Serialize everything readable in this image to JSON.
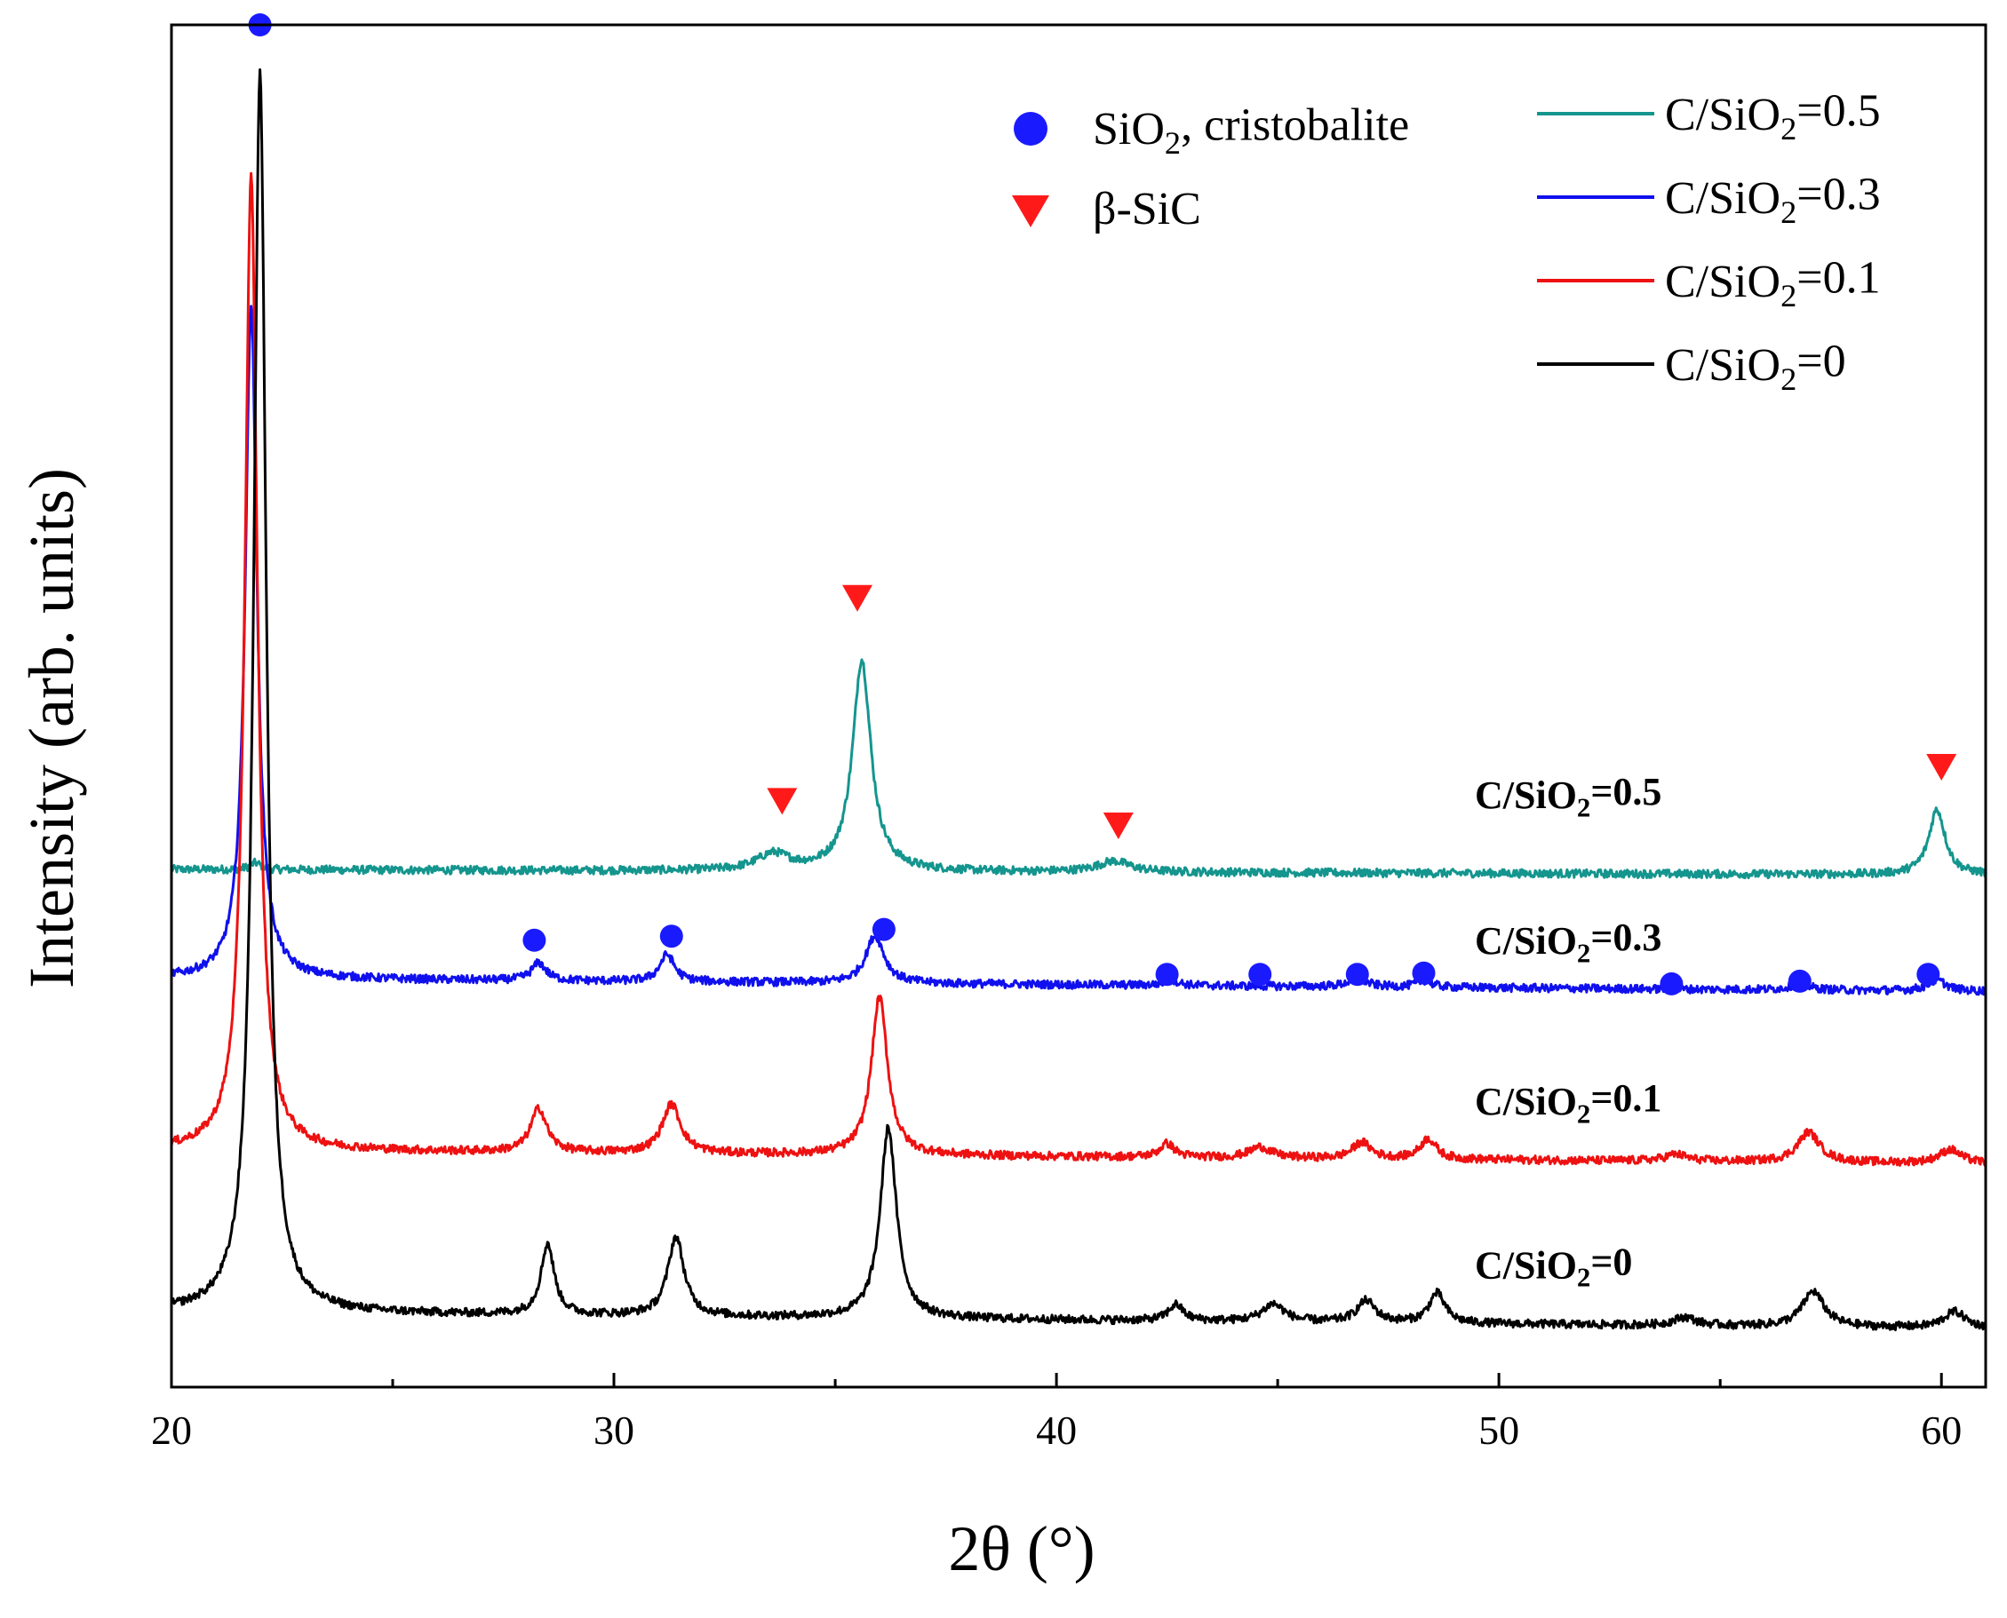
{
  "chart_data": {
    "type": "line",
    "title": "",
    "xlabel": "2θ (°)",
    "ylabel": "Intensity (arb. units)",
    "xlim": [
      20,
      61
    ],
    "ylim": [
      0,
      1
    ],
    "xticks": [
      20,
      30,
      40,
      50,
      60
    ],
    "yticks": [],
    "grid": false,
    "legend_position": "top-right",
    "colors": {
      "c05": "#14958e",
      "c03": "#1010ee",
      "c01": "#ee1111",
      "c0": "#000000",
      "cristobalite_marker": "#1a1aff",
      "sic_marker": "#ff1a1a"
    },
    "series": [
      {
        "key": "c05",
        "name": "C/SiO2=0.5",
        "label_main": "C/SiO",
        "label_sub": "2",
        "label_tail": "=0.5",
        "color": "#14958e",
        "baseline": 0.38,
        "slope": -0.004,
        "peaks": [
          {
            "x": 21.9,
            "height": 0.005,
            "width": 0.15
          },
          {
            "x": 33.6,
            "height": 0.012,
            "width": 0.45
          },
          {
            "x": 35.6,
            "height": 0.155,
            "width": 0.25
          },
          {
            "x": 41.3,
            "height": 0.008,
            "width": 0.45
          },
          {
            "x": 59.9,
            "height": 0.048,
            "width": 0.22
          }
        ]
      },
      {
        "key": "c03",
        "name": "C/SiO2=0.3",
        "label_main": "C/SiO",
        "label_sub": "2",
        "label_tail": "=0.3",
        "color": "#1010ee",
        "baseline": 0.3,
        "slope": -0.0095,
        "peaks": [
          {
            "x": 21.8,
            "height": 0.495,
            "width": 0.16
          },
          {
            "x": 28.3,
            "height": 0.013,
            "width": 0.2
          },
          {
            "x": 31.2,
            "height": 0.02,
            "width": 0.2
          },
          {
            "x": 35.9,
            "height": 0.035,
            "width": 0.25
          },
          {
            "x": 42.6,
            "height": 0.004,
            "width": 0.2
          },
          {
            "x": 46.8,
            "height": 0.006,
            "width": 0.25
          },
          {
            "x": 48.3,
            "height": 0.005,
            "width": 0.2
          },
          {
            "x": 56.8,
            "height": 0.005,
            "width": 0.25
          },
          {
            "x": 59.9,
            "height": 0.008,
            "width": 0.25
          }
        ]
      },
      {
        "key": "c01",
        "name": "C/SiO2=0.1",
        "label_main": "C/SiO",
        "label_sub": "2",
        "label_tail": "=0.1",
        "color": "#ee1111",
        "baseline": 0.174,
        "slope": -0.01,
        "peaks": [
          {
            "x": 21.8,
            "height": 0.715,
            "width": 0.17
          },
          {
            "x": 28.3,
            "height": 0.032,
            "width": 0.22
          },
          {
            "x": 31.3,
            "height": 0.036,
            "width": 0.25
          },
          {
            "x": 36.0,
            "height": 0.116,
            "width": 0.22
          },
          {
            "x": 42.5,
            "height": 0.01,
            "width": 0.2
          },
          {
            "x": 44.6,
            "height": 0.008,
            "width": 0.3
          },
          {
            "x": 46.9,
            "height": 0.012,
            "width": 0.25
          },
          {
            "x": 48.4,
            "height": 0.015,
            "width": 0.22
          },
          {
            "x": 54.0,
            "height": 0.005,
            "width": 0.3
          },
          {
            "x": 57.0,
            "height": 0.022,
            "width": 0.3
          },
          {
            "x": 60.2,
            "height": 0.01,
            "width": 0.3
          }
        ]
      },
      {
        "key": "c0",
        "name": "C/SiO2=0",
        "label_main": "C/SiO",
        "label_sub": "2",
        "label_tail": "=0",
        "color": "#000000",
        "baseline": 0.055,
        "slope": -0.012,
        "peaks": [
          {
            "x": 22.0,
            "height": 0.91,
            "width": 0.17
          },
          {
            "x": 28.5,
            "height": 0.052,
            "width": 0.18
          },
          {
            "x": 31.4,
            "height": 0.058,
            "width": 0.22
          },
          {
            "x": 36.2,
            "height": 0.14,
            "width": 0.22
          },
          {
            "x": 42.7,
            "height": 0.012,
            "width": 0.2
          },
          {
            "x": 44.9,
            "height": 0.013,
            "width": 0.3
          },
          {
            "x": 47.0,
            "height": 0.016,
            "width": 0.25
          },
          {
            "x": 48.6,
            "height": 0.022,
            "width": 0.22
          },
          {
            "x": 54.2,
            "height": 0.006,
            "width": 0.3
          },
          {
            "x": 57.1,
            "height": 0.026,
            "width": 0.3
          },
          {
            "x": 60.3,
            "height": 0.012,
            "width": 0.3
          }
        ]
      }
    ],
    "annotations": {
      "cristobalite_markers": [
        {
          "x": 22.0,
          "y": 1.0
        },
        {
          "x": 28.2,
          "y": 0.328
        },
        {
          "x": 31.3,
          "y": 0.331
        },
        {
          "x": 36.1,
          "y": 0.336
        },
        {
          "x": 42.5,
          "y": 0.303
        },
        {
          "x": 44.6,
          "y": 0.303
        },
        {
          "x": 46.8,
          "y": 0.303
        },
        {
          "x": 48.3,
          "y": 0.304
        },
        {
          "x": 53.9,
          "y": 0.296
        },
        {
          "x": 56.8,
          "y": 0.298
        },
        {
          "x": 59.7,
          "y": 0.303
        }
      ],
      "sic_markers": [
        {
          "x": 33.8,
          "y": 0.43
        },
        {
          "x": 35.5,
          "y": 0.579
        },
        {
          "x": 41.4,
          "y": 0.412
        },
        {
          "x": 60.0,
          "y": 0.455
        }
      ]
    },
    "legend": {
      "markers": [
        {
          "key": "cristobalite",
          "symbol": "circle",
          "text_main": "SiO",
          "text_sub": "2",
          "text_tail": ", cristobalite"
        },
        {
          "key": "sic",
          "symbol": "triangle-down",
          "text_main": "β-SiC",
          "text_sub": "",
          "text_tail": ""
        }
      ],
      "lines": [
        {
          "key": "c05",
          "main": "C/SiO",
          "sub": "2",
          "tail": "=0.5"
        },
        {
          "key": "c03",
          "main": "C/SiO",
          "sub": "2",
          "tail": "=0.3"
        },
        {
          "key": "c01",
          "main": "C/SiO",
          "sub": "2",
          "tail": "=0.1"
        },
        {
          "key": "c0",
          "main": "C/SiO",
          "sub": "2",
          "tail": "=0"
        }
      ]
    }
  }
}
